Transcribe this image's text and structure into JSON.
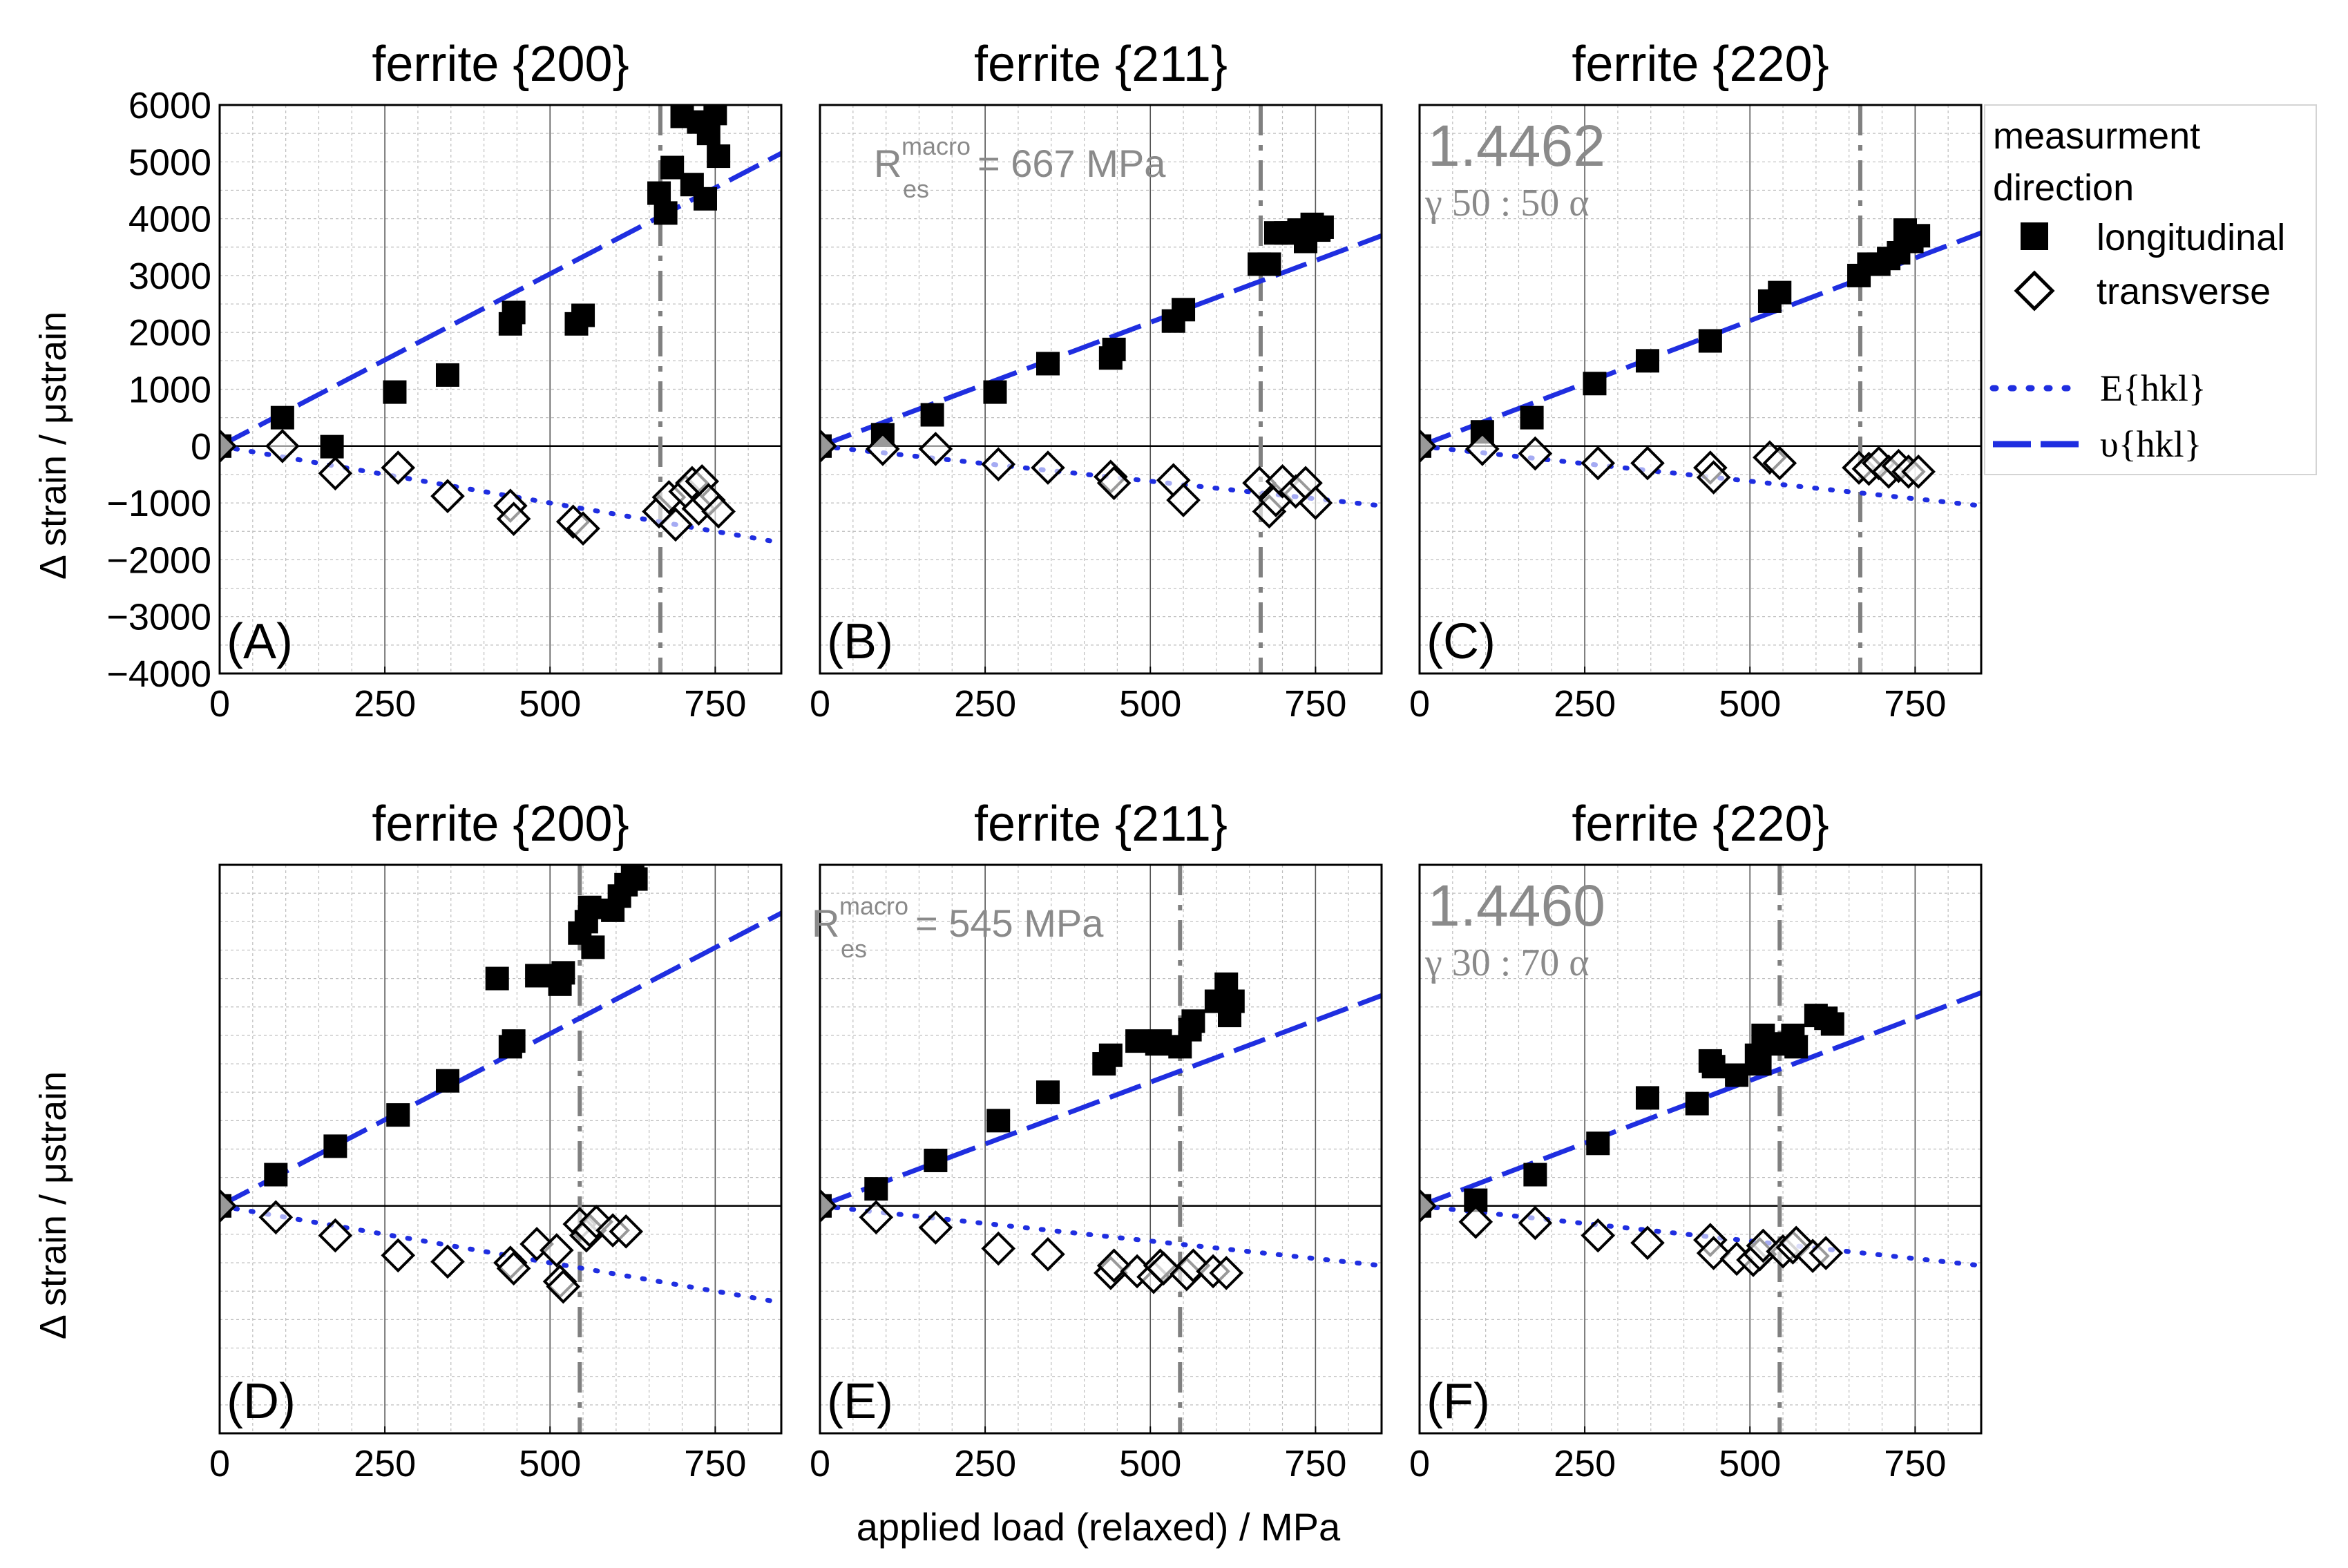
{
  "figure": {
    "xlabel": "applied load (relaxed) / MPa",
    "ylabel": "Δ strain / μstrain"
  },
  "legend": {
    "title_line1": "measurment",
    "title_line2": "direction",
    "longitudinal": "longitudinal",
    "transverse": "transverse",
    "e_hkl": "E{hkl}",
    "nu_hkl": "υ{hkl}"
  },
  "colors": {
    "fit": "#1f2ee0",
    "marker": "#000000",
    "grid": "#bdbdbd",
    "vline": "#808080",
    "annot": "#8a8a8a"
  },
  "chart_data": [
    {
      "type": "scatter",
      "title": "ferrite {200}",
      "label": "(A)",
      "xlim": [
        0,
        850
      ],
      "ylim": [
        -4000,
        6000
      ],
      "xticks": [
        "0",
        "250",
        "500",
        "750"
      ],
      "yticks": [
        "6000",
        "5000",
        "4000",
        "3000",
        "2000",
        "1000",
        "0",
        "−1000",
        "−2000",
        "−3000",
        "−4000"
      ],
      "ytick_values": [
        6000,
        5000,
        4000,
        3000,
        2000,
        1000,
        0,
        -1000,
        -2000,
        -3000,
        -4000
      ],
      "rmacro": 667,
      "fit_long": [
        [
          0,
          0
        ],
        [
          850,
          5150
        ]
      ],
      "fit_trans": [
        [
          0,
          0
        ],
        [
          850,
          -1700
        ]
      ],
      "longitudinal": [
        [
          0,
          0
        ],
        [
          95,
          500
        ],
        [
          170,
          -10
        ],
        [
          265,
          950
        ],
        [
          345,
          1250
        ],
        [
          440,
          2150
        ],
        [
          445,
          2350
        ],
        [
          540,
          2150
        ],
        [
          550,
          2300
        ],
        [
          665,
          4450
        ],
        [
          675,
          4100
        ],
        [
          685,
          4900
        ],
        [
          700,
          5800
        ],
        [
          715,
          4600
        ],
        [
          725,
          5700
        ],
        [
          735,
          4350
        ],
        [
          740,
          5500
        ],
        [
          750,
          5850
        ],
        [
          755,
          5100
        ]
      ],
      "transverse": [
        [
          0,
          0
        ],
        [
          95,
          0
        ],
        [
          175,
          -480
        ],
        [
          270,
          -380
        ],
        [
          345,
          -880
        ],
        [
          440,
          -1050
        ],
        [
          445,
          -1280
        ],
        [
          535,
          -1330
        ],
        [
          550,
          -1450
        ],
        [
          665,
          -1150
        ],
        [
          680,
          -900
        ],
        [
          690,
          -1380
        ],
        [
          705,
          -800
        ],
        [
          715,
          -650
        ],
        [
          725,
          -1100
        ],
        [
          730,
          -620
        ],
        [
          740,
          -950
        ],
        [
          755,
          -1150
        ]
      ]
    },
    {
      "type": "scatter",
      "title": "ferrite {211}",
      "label": "(B)",
      "xlim": [
        0,
        850
      ],
      "ylim": [
        -4000,
        6000
      ],
      "xticks": [
        "0",
        "250",
        "500",
        "750"
      ],
      "rmacro": 667,
      "annotation": "= 667 MPa",
      "annot_R": "R",
      "annot_sup": "macro",
      "annot_sub": "es",
      "fit_long": [
        [
          0,
          0
        ],
        [
          850,
          3700
        ]
      ],
      "fit_trans": [
        [
          0,
          0
        ],
        [
          850,
          -1050
        ]
      ],
      "longitudinal": [
        [
          0,
          0
        ],
        [
          95,
          200
        ],
        [
          170,
          550
        ],
        [
          265,
          950
        ],
        [
          345,
          1450
        ],
        [
          440,
          1550
        ],
        [
          445,
          1700
        ],
        [
          535,
          2200
        ],
        [
          550,
          2400
        ],
        [
          665,
          3200
        ],
        [
          680,
          3200
        ],
        [
          690,
          3750
        ],
        [
          705,
          3750
        ],
        [
          715,
          3750
        ],
        [
          725,
          3800
        ],
        [
          735,
          3600
        ],
        [
          745,
          3900
        ],
        [
          755,
          3800
        ],
        [
          760,
          3850
        ]
      ],
      "transverse": [
        [
          0,
          0
        ],
        [
          95,
          -50
        ],
        [
          175,
          -50
        ],
        [
          270,
          -320
        ],
        [
          345,
          -380
        ],
        [
          440,
          -540
        ],
        [
          445,
          -650
        ],
        [
          535,
          -600
        ],
        [
          550,
          -950
        ],
        [
          665,
          -650
        ],
        [
          680,
          -1150
        ],
        [
          690,
          -950
        ],
        [
          700,
          -620
        ],
        [
          720,
          -800
        ],
        [
          735,
          -650
        ],
        [
          750,
          -1000
        ]
      ]
    },
    {
      "type": "scatter",
      "title": "ferrite {220}",
      "label": "(C)",
      "xlim": [
        0,
        850
      ],
      "ylim": [
        -4000,
        6000
      ],
      "xticks": [
        "0",
        "250",
        "500",
        "750"
      ],
      "rmacro": 667,
      "material": "1.4462",
      "phase_ratio": "γ 50 : 50 α",
      "fit_long": [
        [
          0,
          0
        ],
        [
          850,
          3750
        ]
      ],
      "fit_trans": [
        [
          0,
          0
        ],
        [
          850,
          -1050
        ]
      ],
      "longitudinal": [
        [
          0,
          0
        ],
        [
          95,
          250
        ],
        [
          170,
          500
        ],
        [
          265,
          1100
        ],
        [
          345,
          1500
        ],
        [
          440,
          1850
        ],
        [
          530,
          2550
        ],
        [
          545,
          2700
        ],
        [
          665,
          3000
        ],
        [
          680,
          3200
        ],
        [
          695,
          3200
        ],
        [
          710,
          3300
        ],
        [
          725,
          3400
        ],
        [
          735,
          3800
        ],
        [
          745,
          3600
        ],
        [
          755,
          3700
        ]
      ],
      "transverse": [
        [
          0,
          0
        ],
        [
          95,
          -50
        ],
        [
          175,
          -130
        ],
        [
          270,
          -300
        ],
        [
          345,
          -300
        ],
        [
          440,
          -380
        ],
        [
          445,
          -550
        ],
        [
          530,
          -200
        ],
        [
          545,
          -300
        ],
        [
          665,
          -380
        ],
        [
          680,
          -400
        ],
        [
          695,
          -300
        ],
        [
          710,
          -450
        ],
        [
          725,
          -350
        ],
        [
          740,
          -450
        ],
        [
          755,
          -450
        ]
      ]
    },
    {
      "type": "scatter",
      "title": "ferrite {200}",
      "label": "(D)",
      "xlim": [
        0,
        850
      ],
      "ylim": [
        -4000,
        6000
      ],
      "xticks": [
        "0",
        "250",
        "500",
        "750"
      ],
      "rmacro": 545,
      "fit_long": [
        [
          0,
          0
        ],
        [
          850,
          5150
        ]
      ],
      "fit_trans": [
        [
          0,
          0
        ],
        [
          850,
          -1700
        ]
      ],
      "longitudinal": [
        [
          0,
          0
        ],
        [
          85,
          550
        ],
        [
          175,
          1050
        ],
        [
          270,
          1600
        ],
        [
          345,
          2200
        ],
        [
          420,
          4000
        ],
        [
          440,
          2800
        ],
        [
          445,
          2900
        ],
        [
          480,
          4050
        ],
        [
          500,
          4050
        ],
        [
          515,
          3900
        ],
        [
          520,
          4100
        ],
        [
          545,
          4800
        ],
        [
          555,
          5000
        ],
        [
          560,
          5250
        ],
        [
          565,
          4550
        ],
        [
          595,
          5200
        ],
        [
          605,
          5450
        ],
        [
          615,
          5650
        ],
        [
          625,
          5800
        ],
        [
          630,
          5750
        ]
      ],
      "transverse": [
        [
          0,
          0
        ],
        [
          85,
          -200
        ],
        [
          175,
          -520
        ],
        [
          270,
          -870
        ],
        [
          345,
          -980
        ],
        [
          440,
          -1000
        ],
        [
          445,
          -1100
        ],
        [
          480,
          -670
        ],
        [
          510,
          -780
        ],
        [
          515,
          -1330
        ],
        [
          520,
          -1420
        ],
        [
          545,
          -320
        ],
        [
          555,
          -520
        ],
        [
          560,
          -430
        ],
        [
          570,
          -280
        ],
        [
          595,
          -430
        ],
        [
          615,
          -450
        ]
      ]
    },
    {
      "type": "scatter",
      "title": "ferrite {211}",
      "label": "(E)",
      "xlim": [
        0,
        850
      ],
      "ylim": [
        -4000,
        6000
      ],
      "xticks": [
        "0",
        "250",
        "500",
        "750"
      ],
      "rmacro": 545,
      "annotation": "= 545 MPa",
      "annot_R": "R",
      "annot_sup": "macro",
      "annot_sub": "es",
      "fit_long": [
        [
          0,
          0
        ],
        [
          850,
          3700
        ]
      ],
      "fit_trans": [
        [
          0,
          0
        ],
        [
          850,
          -1050
        ]
      ],
      "longitudinal": [
        [
          0,
          0
        ],
        [
          85,
          300
        ],
        [
          175,
          800
        ],
        [
          270,
          1500
        ],
        [
          345,
          2000
        ],
        [
          430,
          2500
        ],
        [
          440,
          2650
        ],
        [
          480,
          2900
        ],
        [
          510,
          2850
        ],
        [
          515,
          2900
        ],
        [
          545,
          2800
        ],
        [
          560,
          3100
        ],
        [
          565,
          3250
        ],
        [
          600,
          3600
        ],
        [
          615,
          3900
        ],
        [
          620,
          3350
        ],
        [
          625,
          3600
        ]
      ],
      "transverse": [
        [
          0,
          0
        ],
        [
          85,
          -200
        ],
        [
          175,
          -380
        ],
        [
          270,
          -750
        ],
        [
          345,
          -850
        ],
        [
          440,
          -1180
        ],
        [
          445,
          -1050
        ],
        [
          480,
          -1150
        ],
        [
          505,
          -1250
        ],
        [
          515,
          -1050
        ],
        [
          520,
          -1100
        ],
        [
          555,
          -1200
        ],
        [
          565,
          -1050
        ],
        [
          595,
          -1150
        ],
        [
          615,
          -1180
        ]
      ]
    },
    {
      "type": "scatter",
      "title": "ferrite {220}",
      "label": "(F)",
      "xlim": [
        0,
        850
      ],
      "ylim": [
        -4000,
        6000
      ],
      "xticks": [
        "0",
        "250",
        "500",
        "750"
      ],
      "rmacro": 545,
      "material": "1.4460",
      "phase_ratio": "γ 30 : 70 α",
      "fit_long": [
        [
          0,
          0
        ],
        [
          850,
          3750
        ]
      ],
      "fit_trans": [
        [
          0,
          0
        ],
        [
          850,
          -1050
        ]
      ],
      "longitudinal": [
        [
          0,
          0
        ],
        [
          85,
          100
        ],
        [
          175,
          550
        ],
        [
          270,
          1100
        ],
        [
          345,
          1900
        ],
        [
          420,
          1800
        ],
        [
          440,
          2550
        ],
        [
          445,
          2450
        ],
        [
          480,
          2300
        ],
        [
          510,
          2650
        ],
        [
          515,
          2500
        ],
        [
          520,
          3000
        ],
        [
          545,
          2850
        ],
        [
          565,
          3000
        ],
        [
          570,
          2800
        ],
        [
          600,
          3350
        ],
        [
          615,
          3300
        ],
        [
          625,
          3200
        ]
      ],
      "transverse": [
        [
          0,
          0
        ],
        [
          85,
          -280
        ],
        [
          175,
          -300
        ],
        [
          270,
          -520
        ],
        [
          345,
          -650
        ],
        [
          440,
          -600
        ],
        [
          445,
          -830
        ],
        [
          480,
          -930
        ],
        [
          505,
          -950
        ],
        [
          515,
          -850
        ],
        [
          520,
          -700
        ],
        [
          550,
          -800
        ],
        [
          565,
          -730
        ],
        [
          570,
          -650
        ],
        [
          595,
          -880
        ],
        [
          615,
          -830
        ]
      ]
    }
  ]
}
